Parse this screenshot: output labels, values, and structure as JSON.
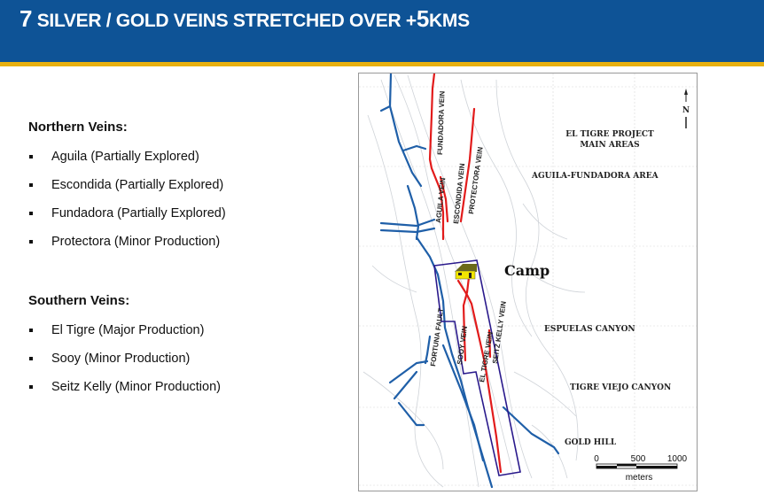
{
  "header": {
    "title_num": "7",
    "title_a": " SILVER / GOLD VEINS STRETCHED OVER +",
    "title_num2": "5",
    "title_b": "KMS"
  },
  "northern": {
    "heading": "Northern Veins:",
    "items": [
      "Aguila (Partially Explored)",
      "Escondida (Partially Explored)",
      "Fundadora (Partially Explored)",
      "Protectora (Minor Production)"
    ]
  },
  "southern": {
    "heading": "Southern Veins:",
    "items": [
      "El Tigre (Major Production)",
      "Sooy (Minor Production)",
      "Seitz Kelly (Minor Production)"
    ]
  },
  "map": {
    "title1": "EL TIGRE PROJECT",
    "title2": "MAIN AREAS",
    "north": "N",
    "areas": [
      "AGUILA-FUNDADORA AREA",
      "ESPUELAS CANYON",
      "TIGRE VIEJO CANYON",
      "GOLD HILL"
    ],
    "camp": "Camp",
    "veins": {
      "fundadora": "FUNDADORA VEIN",
      "aguila": "AGUILA VEIN",
      "escondida": "ESCONDIDA VEIN",
      "protectora": "PROTECTORA VEIN",
      "sooy": "SOOY VEIN",
      "eltigre": "EL TIGRE VEIN",
      "seitz": "SEITZ KELLY VEIN",
      "fault": "FORTUNA FAULT"
    },
    "scale": {
      "t0": "0",
      "t1": "500",
      "t2": "1000",
      "unit": "meters"
    },
    "colors": {
      "vein": "#e21b1b",
      "stream": "#1f5fa8",
      "boundary": "#2a1a8c",
      "camp": "#f2e600"
    }
  }
}
